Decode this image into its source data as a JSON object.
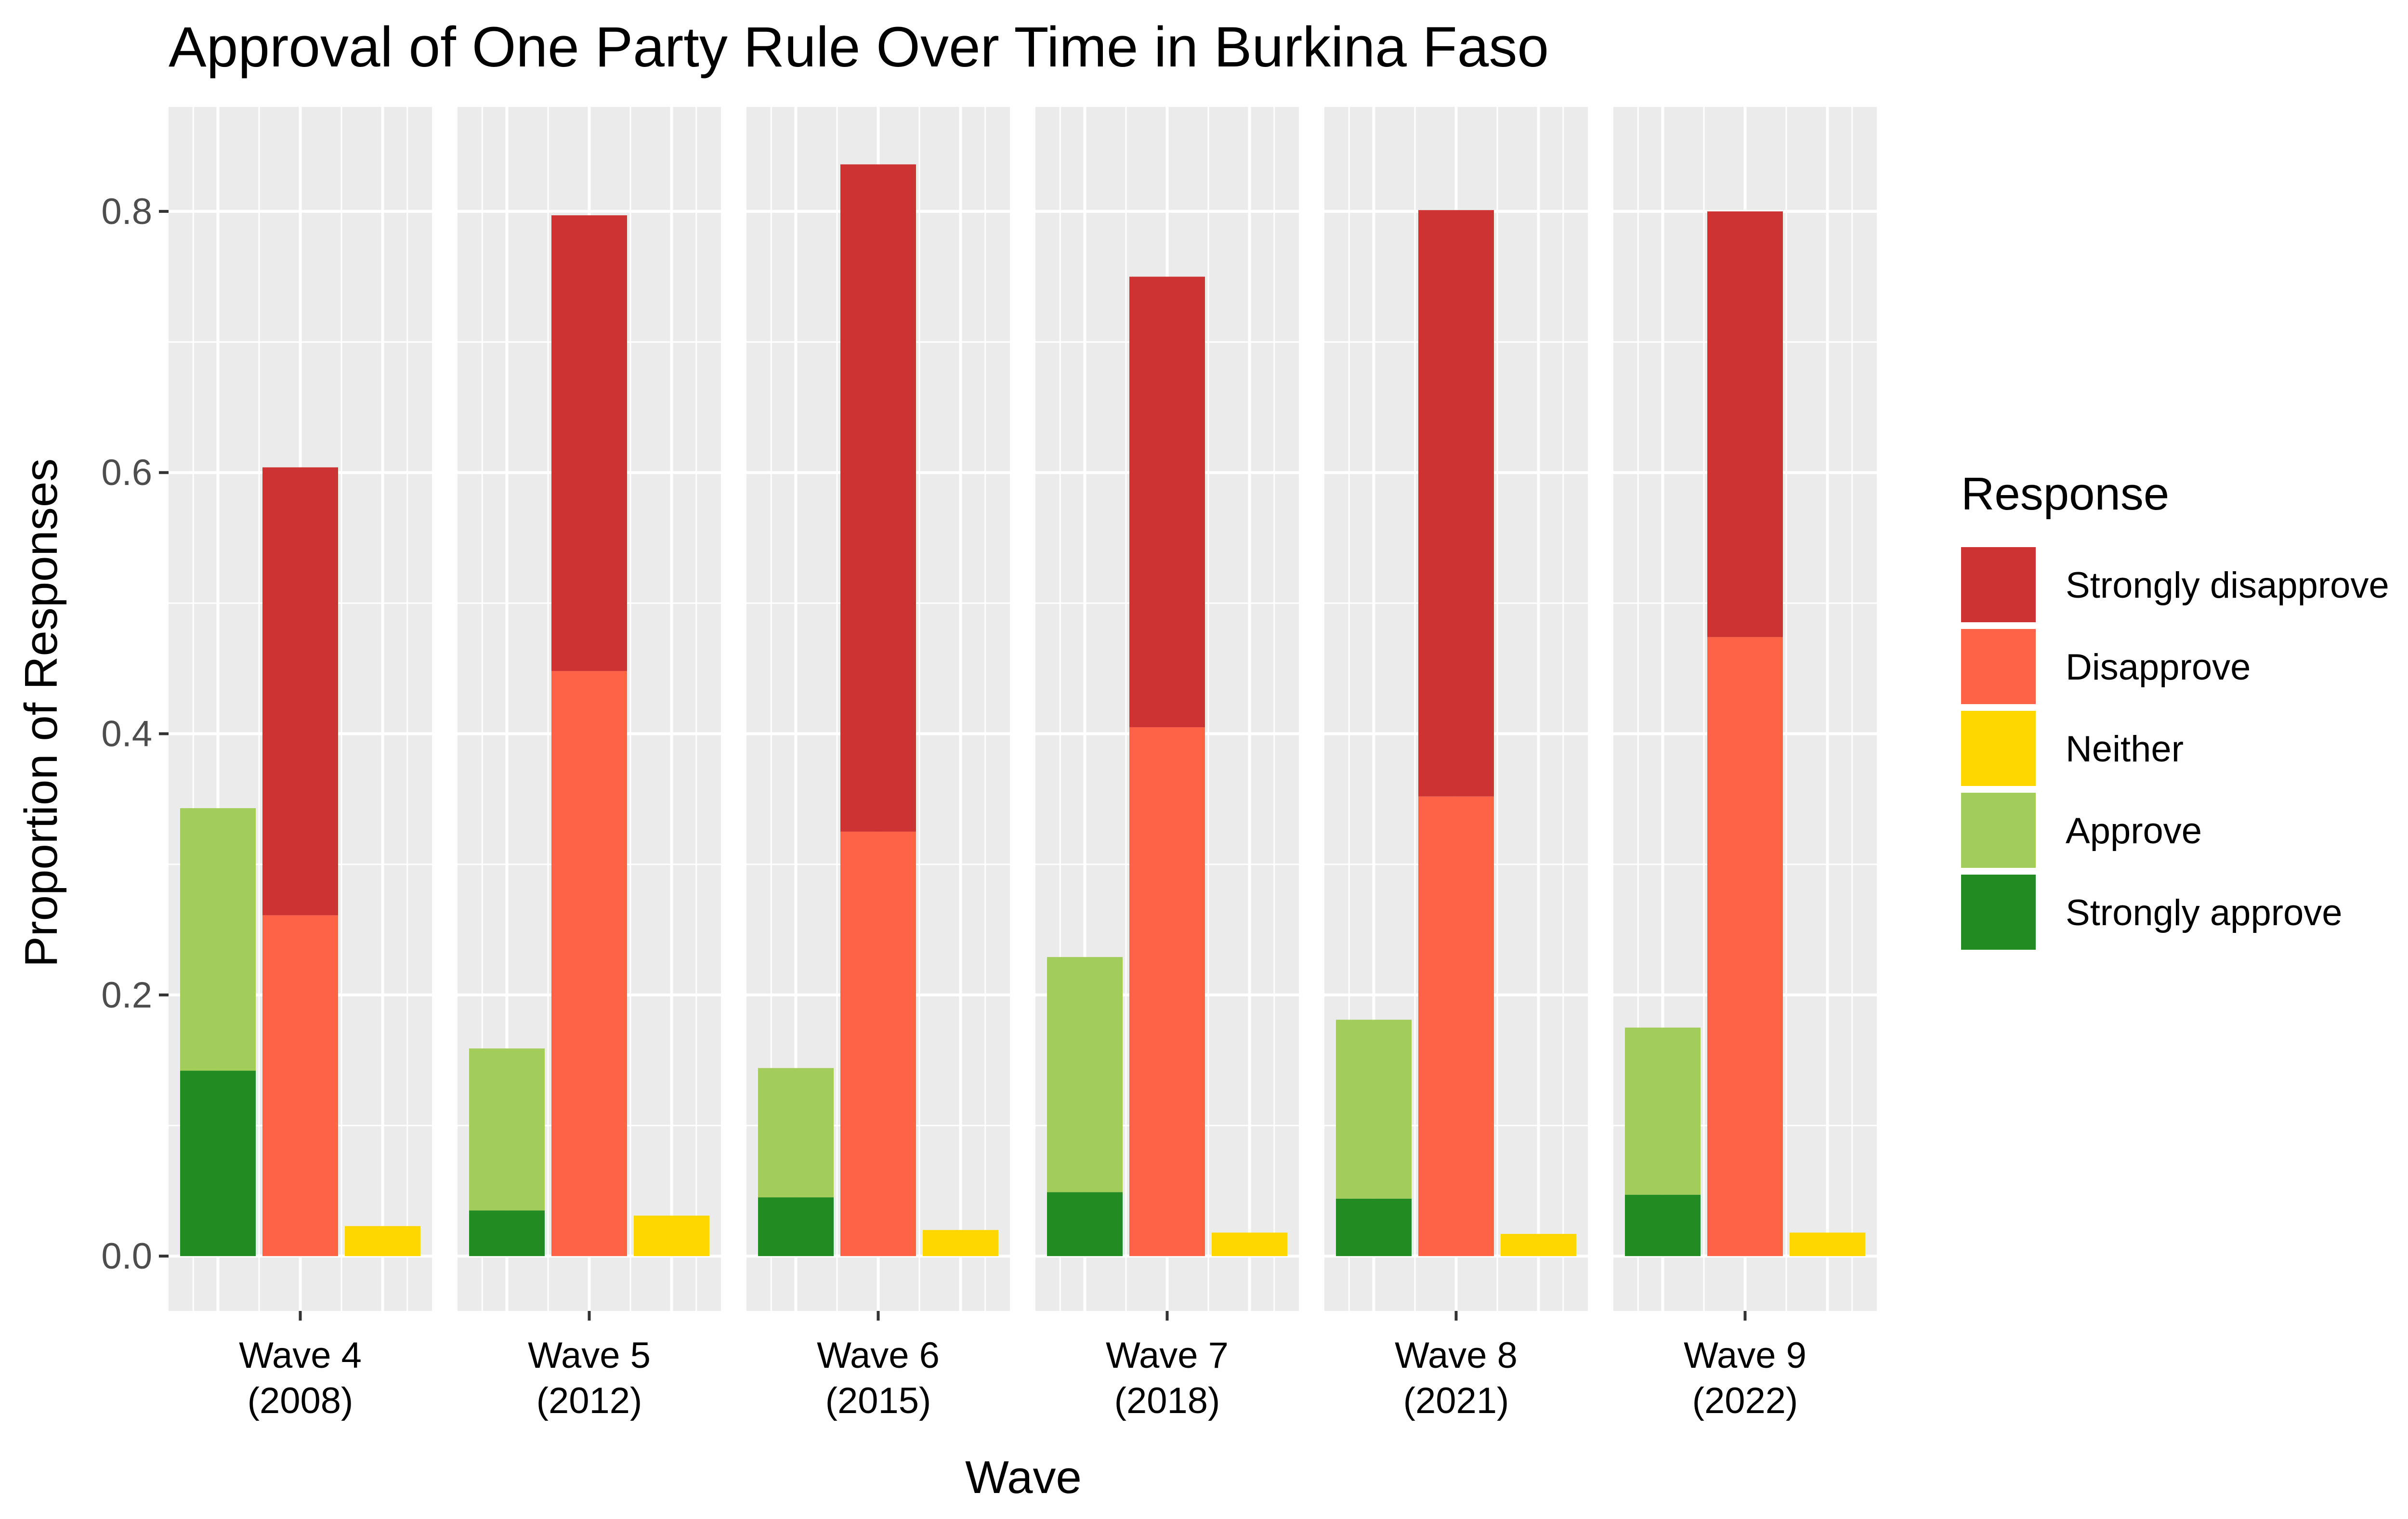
{
  "chart_data": {
    "type": "bar",
    "title": "Approval of One Party Rule Over Time in Burkina Faso",
    "xlabel": "Wave",
    "ylabel": "Proportion of Responses",
    "ylim": [
      -0.042,
      0.88
    ],
    "yticks": [
      0.0,
      0.2,
      0.4,
      0.6,
      0.8
    ],
    "ytick_labels": [
      "0.0",
      "0.2",
      "0.4",
      "0.6",
      "0.8"
    ],
    "grid": true,
    "legend_position": "right",
    "legend_title": "Response",
    "legend": [
      {
        "name": "Strongly disapprove",
        "color": "#CD3333"
      },
      {
        "name": "Disapprove",
        "color": "#FF6347"
      },
      {
        "name": "Neither",
        "color": "#FFD700"
      },
      {
        "name": "Approve",
        "color": "#A2CD5A"
      },
      {
        "name": "Strongly approve",
        "color": "#228B22"
      }
    ],
    "facets": [
      {
        "label_line1": "Wave 4",
        "label_line2": "(2008)",
        "approve": {
          "strongly_approve": 0.142,
          "approve": 0.201
        },
        "disapprove": {
          "disapprove": 0.261,
          "strongly_disapprove": 0.343
        },
        "neither": 0.023
      },
      {
        "label_line1": "Wave 5",
        "label_line2": "(2012)",
        "approve": {
          "strongly_approve": 0.035,
          "approve": 0.124
        },
        "disapprove": {
          "disapprove": 0.448,
          "strongly_disapprove": 0.349
        },
        "neither": 0.031
      },
      {
        "label_line1": "Wave 6",
        "label_line2": "(2015)",
        "approve": {
          "strongly_approve": 0.045,
          "approve": 0.099
        },
        "disapprove": {
          "disapprove": 0.325,
          "strongly_disapprove": 0.511
        },
        "neither": 0.02
      },
      {
        "label_line1": "Wave 7",
        "label_line2": "(2018)",
        "approve": {
          "strongly_approve": 0.049,
          "approve": 0.18
        },
        "disapprove": {
          "disapprove": 0.405,
          "strongly_disapprove": 0.345
        },
        "neither": 0.018
      },
      {
        "label_line1": "Wave 8",
        "label_line2": "(2021)",
        "approve": {
          "strongly_approve": 0.044,
          "approve": 0.137
        },
        "disapprove": {
          "disapprove": 0.352,
          "strongly_disapprove": 0.449
        },
        "neither": 0.017
      },
      {
        "label_line1": "Wave 9",
        "label_line2": "(2022)",
        "approve": {
          "strongly_approve": 0.047,
          "approve": 0.128
        },
        "disapprove": {
          "disapprove": 0.474,
          "strongly_disapprove": 0.326
        },
        "neither": 0.018
      }
    ]
  }
}
